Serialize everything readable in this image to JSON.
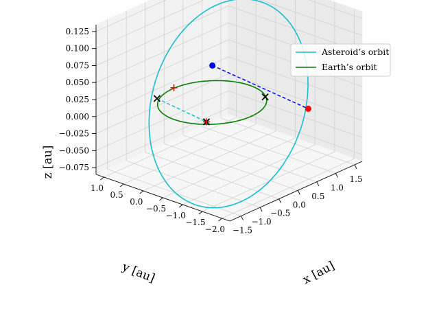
{
  "chart_data": {
    "type": "line3d",
    "xlabel": "x [au]",
    "ylabel": "y [au]",
    "zlabel": "z [au]",
    "xlim": [
      -1.8,
      1.7
    ],
    "ylim": [
      -2.2,
      1.2
    ],
    "zlim": [
      -0.085,
      0.135
    ],
    "xticks": [
      -1.5,
      -1.0,
      -0.5,
      0.0,
      0.5,
      1.0,
      1.5
    ],
    "xtick_labels": [
      "−1.5",
      "−1.0",
      "−0.5",
      "0.0",
      "0.5",
      "1.0",
      "1.5"
    ],
    "yticks": [
      1.0,
      0.5,
      0.0,
      -0.5,
      -1.0,
      -1.5,
      -2.0
    ],
    "ytick_labels": [
      "1.0",
      "0.5",
      "0.0",
      "−0.5",
      "−1.0",
      "−1.5",
      "−2.0"
    ],
    "zticks": [
      0.125,
      0.1,
      0.075,
      0.05,
      0.025,
      0.0,
      -0.025,
      -0.05,
      -0.075
    ],
    "ztick_labels": [
      "0.125",
      "0.100",
      "0.075",
      "0.050",
      "0.025",
      "0.000",
      "−0.025",
      "−0.050",
      "−0.075"
    ],
    "grid": true,
    "legend_position": "top-right",
    "series": [
      {
        "name": "Asteroid’s orbit",
        "style": "line",
        "color": "#17becf",
        "orbit": {
          "a": 1.4589,
          "e": 0.2228,
          "i_deg": 4.36,
          "node_deg": 300,
          "peri_deg": 180
        }
      },
      {
        "name": "Earth’s orbit",
        "style": "line",
        "color": "#008000",
        "orbit": {
          "a": 1.0,
          "e": 0.0167,
          "i_deg": 0.0,
          "node_deg": 0,
          "peri_deg": 102.9
        }
      }
    ],
    "markers": [
      {
        "shape": "plus",
        "color": "#ff0000",
        "x": 0.05,
        "y": 1.0,
        "z": 0.0
      },
      {
        "shape": "dot",
        "color": "#0000ff",
        "x": 0.6,
        "y": 0.55,
        "z": 0.028
      },
      {
        "shape": "dot",
        "color": "#ff0000",
        "x": 0.95,
        "y": -1.55,
        "z": -0.002
      },
      {
        "shape": "cross",
        "color": "#000000",
        "x": -0.5,
        "y": 0.9,
        "z": 0.0
      },
      {
        "shape": "cross",
        "color": "#000000",
        "x": 0.8,
        "y": -0.6,
        "z": 0.0
      },
      {
        "shape": "cross",
        "color": "#000000",
        "x": -0.7,
        "y": -0.55,
        "z": 0.0
      },
      {
        "shape": "plus",
        "color": "#ff0000",
        "x": -0.7,
        "y": -0.55,
        "z": 0.0
      }
    ],
    "connectors": [
      {
        "color": "#0000ff",
        "style": "dashed",
        "from": [
          0.6,
          0.55,
          0.028
        ],
        "to": [
          0.95,
          -1.55,
          -0.002
        ]
      },
      {
        "color": "#17becf",
        "style": "dashed",
        "from": [
          -0.5,
          0.9,
          0.0
        ],
        "to": [
          -0.7,
          -0.55,
          0.0
        ]
      }
    ]
  }
}
